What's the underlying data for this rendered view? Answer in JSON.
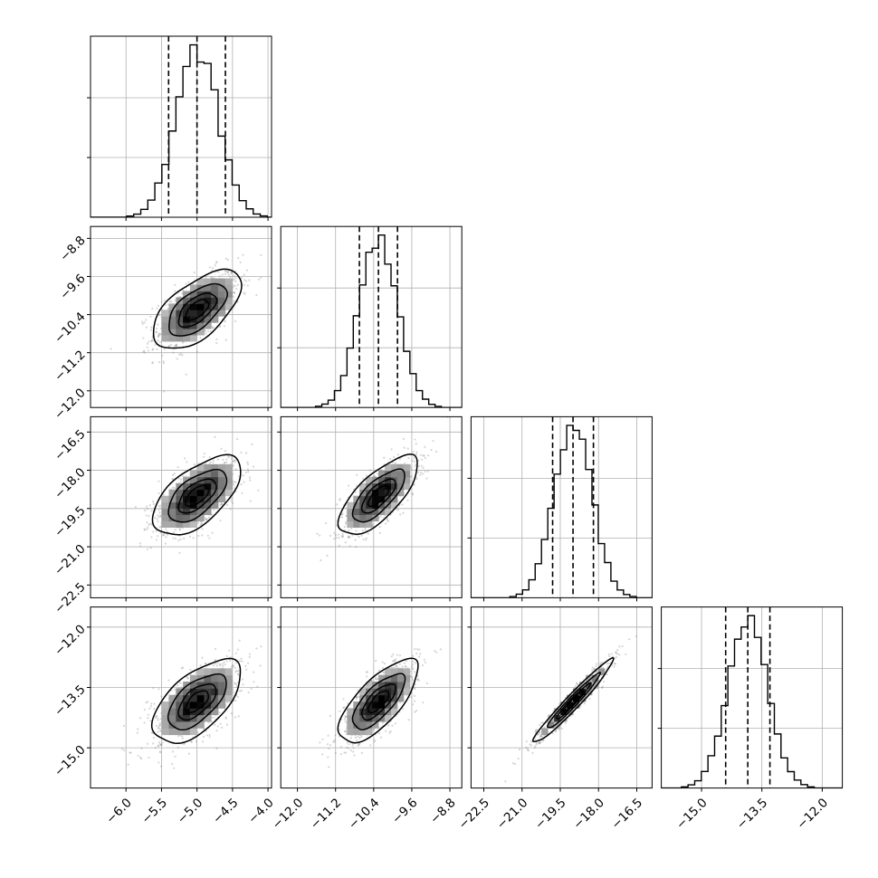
{
  "chart_data": {
    "type": "corner",
    "title": "",
    "parameters": [
      {
        "name": "",
        "mean": -5.0,
        "std": 0.3,
        "quantiles": [
          -5.4,
          -5.0,
          -4.6
        ],
        "range": [
          -6.5,
          -3.95
        ],
        "ticks": [
          -6.0,
          -5.5,
          -5.0,
          -4.5,
          -4.0
        ],
        "tick_labels": [
          "−6.0",
          "−5.5",
          "−5.0",
          "−4.5",
          "−4.0"
        ]
      },
      {
        "name": "",
        "mean": -10.3,
        "std": 0.4,
        "quantiles": [
          -10.7,
          -10.3,
          -9.9
        ],
        "range": [
          -12.35,
          -8.55
        ],
        "ticks": [
          -12.0,
          -11.2,
          -10.4,
          -9.6,
          -8.8
        ],
        "tick_labels": [
          "−12.0",
          "−11.2",
          "−10.4",
          "−9.6",
          "−8.8"
        ]
      },
      {
        "name": "",
        "mean": -19.0,
        "std": 0.75,
        "quantiles": [
          -19.8,
          -19.0,
          -18.2
        ],
        "range": [
          -23.0,
          -15.9
        ],
        "ticks": [
          -22.5,
          -21.0,
          -19.5,
          -18.0,
          -16.5
        ],
        "tick_labels": [
          "−22.5",
          "−21.0",
          "−19.5",
          "−18.0",
          "−16.5"
        ]
      },
      {
        "name": "",
        "mean": -13.85,
        "std": 0.5,
        "quantiles": [
          -14.4,
          -13.85,
          -13.3
        ],
        "range": [
          -16.0,
          -11.5
        ],
        "ticks": [
          -15.0,
          -13.5,
          -12.0
        ],
        "tick_labels": [
          "−15.0",
          "−13.5",
          "−12.0"
        ]
      }
    ],
    "correlations": [
      [
        1,
        0.6,
        0.6,
        0.6
      ],
      [
        0.6,
        1,
        0.72,
        0.72
      ],
      [
        0.6,
        0.72,
        1,
        0.97
      ],
      [
        0.6,
        0.72,
        0.97,
        1
      ]
    ],
    "contour_levels_sigma": [
      0.5,
      1.0,
      1.5,
      2.0
    ],
    "histogram_bins": 20,
    "grid": true,
    "legend": "none"
  }
}
